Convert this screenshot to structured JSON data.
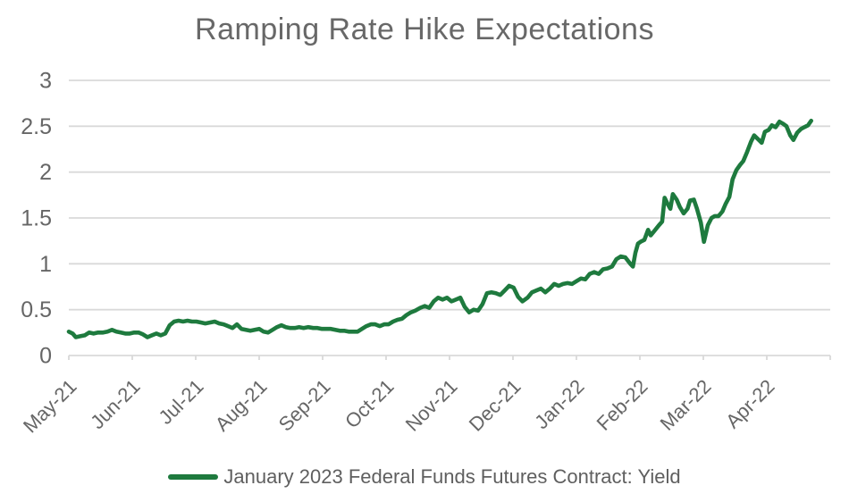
{
  "colors": {
    "line_green": "#1e7a3e",
    "gridline": "#d9d9d9",
    "axis_text": "#666666",
    "title_text": "#686868"
  },
  "legend": {
    "label": "January 2023 Federal Funds Futures Contract: Yield"
  },
  "chart_data": {
    "type": "line",
    "title": "Ramping Rate Hike Expectations",
    "xlabel": "",
    "ylabel": "",
    "ylim": [
      0,
      3
    ],
    "y_ticks": [
      3,
      2.5,
      2,
      1.5,
      1,
      0.5,
      0
    ],
    "y_tick_labels": [
      "3",
      "2.5",
      "2",
      "1.5",
      "1",
      "0.5",
      "0"
    ],
    "x_tick_labels": [
      "May-21",
      "Jun-21",
      "Jul-21",
      "Aug-21",
      "Sep-21",
      "Oct-21",
      "Nov-21",
      "Dec-21",
      "Jan-22",
      "Feb-22",
      "Mar-22",
      "Apr-22"
    ],
    "xlim_months": [
      0,
      12
    ],
    "grid": true,
    "legend_position": "bottom",
    "series": [
      {
        "name": "January 2023 Federal Funds Futures Contract: Yield",
        "color": "#1e7a3e",
        "x_unit": "months_since_may_2021",
        "points": [
          [
            0,
            0.26
          ],
          [
            0.06,
            0.24
          ],
          [
            0.11,
            0.2
          ],
          [
            0.18,
            0.21
          ],
          [
            0.25,
            0.22
          ],
          [
            0.32,
            0.25
          ],
          [
            0.39,
            0.24
          ],
          [
            0.46,
            0.25
          ],
          [
            0.54,
            0.25
          ],
          [
            0.61,
            0.26
          ],
          [
            0.68,
            0.28
          ],
          [
            0.75,
            0.26
          ],
          [
            0.82,
            0.25
          ],
          [
            0.89,
            0.24
          ],
          [
            0.96,
            0.24
          ],
          [
            1.03,
            0.25
          ],
          [
            1.1,
            0.25
          ],
          [
            1.17,
            0.23
          ],
          [
            1.24,
            0.2
          ],
          [
            1.31,
            0.22
          ],
          [
            1.38,
            0.24
          ],
          [
            1.45,
            0.22
          ],
          [
            1.52,
            0.24
          ],
          [
            1.59,
            0.33
          ],
          [
            1.66,
            0.37
          ],
          [
            1.73,
            0.38
          ],
          [
            1.8,
            0.37
          ],
          [
            1.87,
            0.38
          ],
          [
            1.94,
            0.37
          ],
          [
            2.01,
            0.37
          ],
          [
            2.08,
            0.36
          ],
          [
            2.15,
            0.35
          ],
          [
            2.23,
            0.36
          ],
          [
            2.3,
            0.37
          ],
          [
            2.37,
            0.35
          ],
          [
            2.44,
            0.34
          ],
          [
            2.51,
            0.32
          ],
          [
            2.58,
            0.3
          ],
          [
            2.65,
            0.34
          ],
          [
            2.72,
            0.29
          ],
          [
            2.79,
            0.28
          ],
          [
            2.86,
            0.27
          ],
          [
            2.93,
            0.28
          ],
          [
            3,
            0.29
          ],
          [
            3.07,
            0.26
          ],
          [
            3.14,
            0.25
          ],
          [
            3.21,
            0.28
          ],
          [
            3.28,
            0.31
          ],
          [
            3.35,
            0.33
          ],
          [
            3.42,
            0.31
          ],
          [
            3.49,
            0.3
          ],
          [
            3.56,
            0.3
          ],
          [
            3.63,
            0.31
          ],
          [
            3.7,
            0.3
          ],
          [
            3.77,
            0.31
          ],
          [
            3.85,
            0.3
          ],
          [
            3.92,
            0.3
          ],
          [
            3.99,
            0.29
          ],
          [
            4.06,
            0.29
          ],
          [
            4.13,
            0.29
          ],
          [
            4.2,
            0.28
          ],
          [
            4.27,
            0.27
          ],
          [
            4.34,
            0.27
          ],
          [
            4.41,
            0.26
          ],
          [
            4.48,
            0.26
          ],
          [
            4.55,
            0.26
          ],
          [
            4.62,
            0.29
          ],
          [
            4.69,
            0.32
          ],
          [
            4.76,
            0.34
          ],
          [
            4.83,
            0.34
          ],
          [
            4.9,
            0.32
          ],
          [
            4.97,
            0.34
          ],
          [
            5.04,
            0.34
          ],
          [
            5.11,
            0.37
          ],
          [
            5.18,
            0.39
          ],
          [
            5.25,
            0.4
          ],
          [
            5.32,
            0.44
          ],
          [
            5.39,
            0.47
          ],
          [
            5.46,
            0.49
          ],
          [
            5.54,
            0.52
          ],
          [
            5.61,
            0.54
          ],
          [
            5.68,
            0.52
          ],
          [
            5.75,
            0.59
          ],
          [
            5.82,
            0.63
          ],
          [
            5.89,
            0.61
          ],
          [
            5.96,
            0.63
          ],
          [
            6.03,
            0.59
          ],
          [
            6.1,
            0.61
          ],
          [
            6.17,
            0.63
          ],
          [
            6.24,
            0.53
          ],
          [
            6.31,
            0.47
          ],
          [
            6.38,
            0.5
          ],
          [
            6.45,
            0.49
          ],
          [
            6.52,
            0.56
          ],
          [
            6.59,
            0.68
          ],
          [
            6.66,
            0.69
          ],
          [
            6.73,
            0.68
          ],
          [
            6.8,
            0.66
          ],
          [
            6.87,
            0.71
          ],
          [
            6.94,
            0.76
          ],
          [
            7.01,
            0.74
          ],
          [
            7.08,
            0.64
          ],
          [
            7.15,
            0.59
          ],
          [
            7.23,
            0.63
          ],
          [
            7.3,
            0.69
          ],
          [
            7.37,
            0.71
          ],
          [
            7.44,
            0.73
          ],
          [
            7.51,
            0.69
          ],
          [
            7.58,
            0.73
          ],
          [
            7.65,
            0.78
          ],
          [
            7.72,
            0.76
          ],
          [
            7.79,
            0.78
          ],
          [
            7.86,
            0.79
          ],
          [
            7.93,
            0.78
          ],
          [
            8,
            0.81
          ],
          [
            8.07,
            0.84
          ],
          [
            8.14,
            0.83
          ],
          [
            8.21,
            0.89
          ],
          [
            8.28,
            0.91
          ],
          [
            8.35,
            0.89
          ],
          [
            8.42,
            0.94
          ],
          [
            8.49,
            0.95
          ],
          [
            8.56,
            0.97
          ],
          [
            8.63,
            1.05
          ],
          [
            8.7,
            1.08
          ],
          [
            8.77,
            1.07
          ],
          [
            8.85,
            1.0
          ],
          [
            8.89,
            0.97
          ],
          [
            8.93,
            1.12
          ],
          [
            8.97,
            1.22
          ],
          [
            9.01,
            1.24
          ],
          [
            9.07,
            1.26
          ],
          [
            9.13,
            1.37
          ],
          [
            9.17,
            1.31
          ],
          [
            9.23,
            1.36
          ],
          [
            9.3,
            1.42
          ],
          [
            9.35,
            1.46
          ],
          [
            9.39,
            1.72
          ],
          [
            9.44,
            1.65
          ],
          [
            9.48,
            1.6
          ],
          [
            9.52,
            1.76
          ],
          [
            9.58,
            1.7
          ],
          [
            9.63,
            1.62
          ],
          [
            9.69,
            1.55
          ],
          [
            9.75,
            1.6
          ],
          [
            9.79,
            1.69
          ],
          [
            9.85,
            1.7
          ],
          [
            9.9,
            1.6
          ],
          [
            9.96,
            1.45
          ],
          [
            10.01,
            1.24
          ],
          [
            10.07,
            1.42
          ],
          [
            10.13,
            1.5
          ],
          [
            10.18,
            1.52
          ],
          [
            10.24,
            1.52
          ],
          [
            10.3,
            1.57
          ],
          [
            10.35,
            1.65
          ],
          [
            10.41,
            1.73
          ],
          [
            10.46,
            1.92
          ],
          [
            10.52,
            2.02
          ],
          [
            10.58,
            2.08
          ],
          [
            10.63,
            2.12
          ],
          [
            10.69,
            2.22
          ],
          [
            10.75,
            2.33
          ],
          [
            10.8,
            2.4
          ],
          [
            10.86,
            2.36
          ],
          [
            10.92,
            2.32
          ],
          [
            10.97,
            2.44
          ],
          [
            11.03,
            2.46
          ],
          [
            11.08,
            2.51
          ],
          [
            11.14,
            2.49
          ],
          [
            11.2,
            2.55
          ],
          [
            11.25,
            2.53
          ],
          [
            11.31,
            2.5
          ],
          [
            11.37,
            2.4
          ],
          [
            11.42,
            2.35
          ],
          [
            11.48,
            2.43
          ],
          [
            11.54,
            2.47
          ],
          [
            11.59,
            2.49
          ],
          [
            11.65,
            2.51
          ],
          [
            11.7,
            2.56
          ]
        ]
      }
    ]
  }
}
